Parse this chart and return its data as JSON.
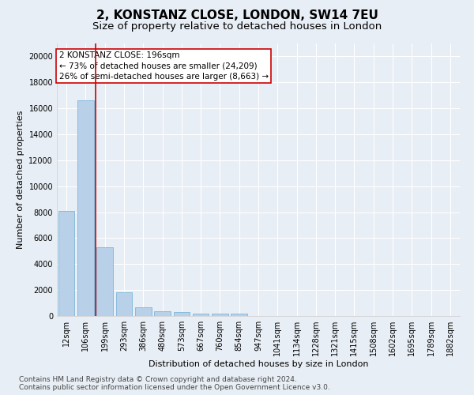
{
  "title": "2, KONSTANZ CLOSE, LONDON, SW14 7EU",
  "subtitle": "Size of property relative to detached houses in London",
  "xlabel": "Distribution of detached houses by size in London",
  "ylabel": "Number of detached properties",
  "categories": [
    "12sqm",
    "106sqm",
    "199sqm",
    "293sqm",
    "386sqm",
    "480sqm",
    "573sqm",
    "667sqm",
    "760sqm",
    "854sqm",
    "947sqm",
    "1041sqm",
    "1134sqm",
    "1228sqm",
    "1321sqm",
    "1415sqm",
    "1508sqm",
    "1602sqm",
    "1695sqm",
    "1789sqm",
    "1882sqm"
  ],
  "values": [
    8100,
    16600,
    5300,
    1850,
    680,
    370,
    280,
    210,
    185,
    155,
    0,
    0,
    0,
    0,
    0,
    0,
    0,
    0,
    0,
    0,
    0
  ],
  "bar_color": "#b8d0e8",
  "bar_edge_color": "#6aaed6",
  "vline_color": "#cc0000",
  "annotation_box_color": "#cc0000",
  "annotation_text": "2 KONSTANZ CLOSE: 196sqm\n← 73% of detached houses are smaller (24,209)\n26% of semi-detached houses are larger (8,663) →",
  "ylim": [
    0,
    21000
  ],
  "yticks": [
    0,
    2000,
    4000,
    6000,
    8000,
    10000,
    12000,
    14000,
    16000,
    18000,
    20000
  ],
  "footnote": "Contains HM Land Registry data © Crown copyright and database right 2024.\nContains public sector information licensed under the Open Government Licence v3.0.",
  "bg_color": "#e8eef5",
  "plot_bg_color": "#e8eef5",
  "grid_color": "#ffffff",
  "title_fontsize": 11,
  "subtitle_fontsize": 9.5,
  "axis_label_fontsize": 8,
  "tick_fontsize": 7,
  "footnote_fontsize": 6.5,
  "annotation_fontsize": 7.5
}
